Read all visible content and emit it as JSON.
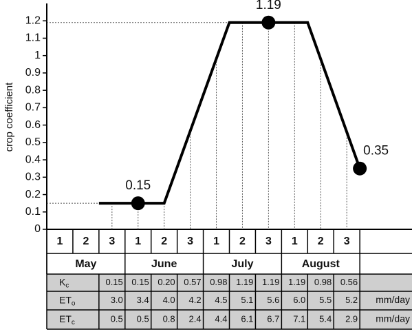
{
  "chart_data": {
    "type": "line",
    "y_label": "crop coefficient",
    "ylim": [
      0,
      1.3
    ],
    "yticks": [
      0,
      0.1,
      0.2,
      0.3,
      0.4,
      0.5,
      0.6,
      0.7,
      0.8,
      0.9,
      1,
      1.1,
      1.2
    ],
    "xlim": [
      0,
      14
    ],
    "series": [
      {
        "x": [
          2,
          4.5,
          7,
          10,
          12
        ],
        "values": [
          0.15,
          0.15,
          1.19,
          1.19,
          0.35
        ],
        "color": "#000000"
      },
      {
        "x": [
          3.5,
          8.5,
          12
        ],
        "values": [
          0.15,
          1.19,
          0.35
        ],
        "color": "#000000",
        "style": "markers"
      }
    ],
    "decades": [
      "1",
      "2",
      "3",
      "1",
      "2",
      "3",
      "1",
      "2",
      "3",
      "1",
      "2",
      "3"
    ],
    "months": [
      "May",
      "June",
      "July",
      "August"
    ]
  },
  "table": {
    "rows": [
      {
        "label": "K",
        "subscript": "c",
        "values": [
          "0.15",
          "0.15",
          "0.20",
          "0.57",
          "0.98",
          "1.19",
          "1.19",
          "1.19",
          "0.98",
          "0.56"
        ]
      },
      {
        "label": "ET",
        "subscript": "o",
        "values": [
          "3.0",
          "3.4",
          "4.0",
          "4.2",
          "4.5",
          "5.1",
          "5.6",
          "6.0",
          "5.5",
          "5.2"
        ],
        "unit": "mm/day"
      },
      {
        "label": "ET",
        "subscript": "c",
        "values": [
          "0.5",
          "0.5",
          "0.8",
          "2.4",
          "4.4",
          "6.1",
          "6.7",
          "7.1",
          "5.4",
          "2.9"
        ],
        "unit": "mm/day"
      }
    ]
  }
}
